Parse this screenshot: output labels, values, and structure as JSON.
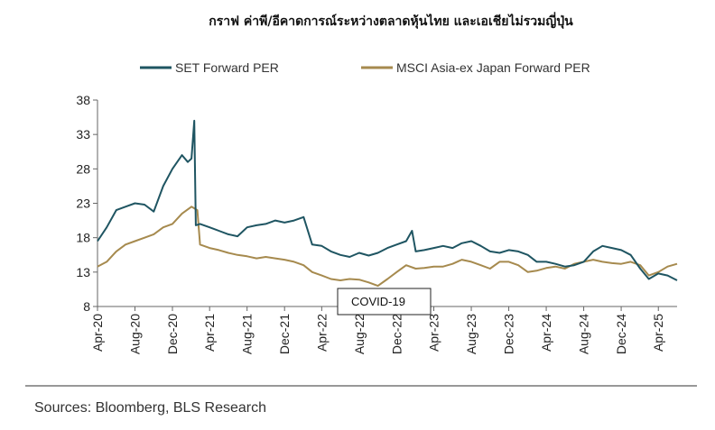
{
  "chart_data": {
    "type": "line",
    "title": "กราฟ ค่าพี/อีคาดการณ์ระหว่างตลาดหุ้นไทย และเอเชียไม่รวมญี่ปุ่น",
    "xlabel": "",
    "ylabel": "",
    "ylim": [
      8,
      38
    ],
    "yticks": [
      "8",
      "13",
      "18",
      "23",
      "28",
      "33",
      "38"
    ],
    "xlim": [
      "2020-04-01",
      "2025-06-01"
    ],
    "xticks": [
      {
        "date": "2020-04-01",
        "label": "Apr-20"
      },
      {
        "date": "2020-08-01",
        "label": "Aug-20"
      },
      {
        "date": "2020-12-01",
        "label": "Dec-20"
      },
      {
        "date": "2021-04-01",
        "label": "Apr-21"
      },
      {
        "date": "2021-08-01",
        "label": "Aug-21"
      },
      {
        "date": "2021-12-01",
        "label": "Dec-21"
      },
      {
        "date": "2022-04-01",
        "label": "Apr-22"
      },
      {
        "date": "2022-08-01",
        "label": "Aug-22"
      },
      {
        "date": "2022-12-01",
        "label": "Dec-22"
      },
      {
        "date": "2023-04-01",
        "label": "Apr-23"
      },
      {
        "date": "2023-08-01",
        "label": "Aug-23"
      },
      {
        "date": "2023-12-01",
        "label": "Dec-23"
      },
      {
        "date": "2024-04-01",
        "label": "Apr-24"
      },
      {
        "date": "2024-08-01",
        "label": "Aug-24"
      },
      {
        "date": "2024-12-01",
        "label": "Dec-24"
      },
      {
        "date": "2025-04-01",
        "label": "Apr-25"
      }
    ],
    "legend_position": "top",
    "grid": false,
    "annotation": "COVID-19",
    "series": [
      {
        "name": "SET Forward PER",
        "color": "#1f5562",
        "points": [
          [
            "2020-04-01",
            17.5
          ],
          [
            "2020-05-01",
            19.5
          ],
          [
            "2020-06-01",
            22.0
          ],
          [
            "2020-07-01",
            22.5
          ],
          [
            "2020-08-01",
            23.0
          ],
          [
            "2020-09-01",
            22.8
          ],
          [
            "2020-10-01",
            21.8
          ],
          [
            "2020-11-01",
            25.5
          ],
          [
            "2020-12-01",
            28.0
          ],
          [
            "2021-01-01",
            30.0
          ],
          [
            "2021-01-20",
            29.0
          ],
          [
            "2021-02-01",
            29.5
          ],
          [
            "2021-02-10",
            35.0
          ],
          [
            "2021-02-15",
            19.8
          ],
          [
            "2021-03-01",
            20.0
          ],
          [
            "2021-04-01",
            19.5
          ],
          [
            "2021-05-01",
            19.0
          ],
          [
            "2021-06-01",
            18.5
          ],
          [
            "2021-07-01",
            18.2
          ],
          [
            "2021-08-01",
            19.5
          ],
          [
            "2021-09-01",
            19.8
          ],
          [
            "2021-10-01",
            20.0
          ],
          [
            "2021-11-01",
            20.5
          ],
          [
            "2021-12-01",
            20.2
          ],
          [
            "2022-01-01",
            20.5
          ],
          [
            "2022-02-01",
            21.0
          ],
          [
            "2022-03-01",
            17.0
          ],
          [
            "2022-04-01",
            16.8
          ],
          [
            "2022-05-01",
            16.0
          ],
          [
            "2022-06-01",
            15.5
          ],
          [
            "2022-07-01",
            15.2
          ],
          [
            "2022-08-01",
            15.8
          ],
          [
            "2022-09-01",
            15.4
          ],
          [
            "2022-10-01",
            15.8
          ],
          [
            "2022-11-01",
            16.5
          ],
          [
            "2022-12-01",
            17.0
          ],
          [
            "2023-01-01",
            17.5
          ],
          [
            "2023-01-20",
            19.0
          ],
          [
            "2023-02-01",
            16.0
          ],
          [
            "2023-03-01",
            16.2
          ],
          [
            "2023-04-01",
            16.5
          ],
          [
            "2023-05-01",
            16.8
          ],
          [
            "2023-06-01",
            16.5
          ],
          [
            "2023-07-01",
            17.2
          ],
          [
            "2023-08-01",
            17.5
          ],
          [
            "2023-09-01",
            16.8
          ],
          [
            "2023-10-01",
            16.0
          ],
          [
            "2023-11-01",
            15.8
          ],
          [
            "2023-12-01",
            16.2
          ],
          [
            "2024-01-01",
            16.0
          ],
          [
            "2024-02-01",
            15.5
          ],
          [
            "2024-03-01",
            14.5
          ],
          [
            "2024-04-01",
            14.5
          ],
          [
            "2024-05-01",
            14.2
          ],
          [
            "2024-06-01",
            13.8
          ],
          [
            "2024-07-01",
            14.0
          ],
          [
            "2024-08-01",
            14.5
          ],
          [
            "2024-09-01",
            16.0
          ],
          [
            "2024-10-01",
            16.8
          ],
          [
            "2024-11-01",
            16.5
          ],
          [
            "2024-12-01",
            16.2
          ],
          [
            "2025-01-01",
            15.5
          ],
          [
            "2025-02-01",
            13.5
          ],
          [
            "2025-03-01",
            12.0
          ],
          [
            "2025-04-01",
            12.8
          ],
          [
            "2025-05-01",
            12.5
          ],
          [
            "2025-06-01",
            11.8
          ]
        ]
      },
      {
        "name": "MSCI Asia-ex Japan Forward PER",
        "color": "#a68a4e",
        "points": [
          [
            "2020-04-01",
            13.8
          ],
          [
            "2020-05-01",
            14.5
          ],
          [
            "2020-06-01",
            16.0
          ],
          [
            "2020-07-01",
            17.0
          ],
          [
            "2020-08-01",
            17.5
          ],
          [
            "2020-09-01",
            18.0
          ],
          [
            "2020-10-01",
            18.5
          ],
          [
            "2020-11-01",
            19.5
          ],
          [
            "2020-12-01",
            20.0
          ],
          [
            "2021-01-01",
            21.5
          ],
          [
            "2021-02-01",
            22.5
          ],
          [
            "2021-02-20",
            22.0
          ],
          [
            "2021-03-01",
            17.0
          ],
          [
            "2021-04-01",
            16.5
          ],
          [
            "2021-05-01",
            16.2
          ],
          [
            "2021-06-01",
            15.8
          ],
          [
            "2021-07-01",
            15.5
          ],
          [
            "2021-08-01",
            15.3
          ],
          [
            "2021-09-01",
            15.0
          ],
          [
            "2021-10-01",
            15.2
          ],
          [
            "2021-11-01",
            15.0
          ],
          [
            "2021-12-01",
            14.8
          ],
          [
            "2022-01-01",
            14.5
          ],
          [
            "2022-02-01",
            14.0
          ],
          [
            "2022-03-01",
            13.0
          ],
          [
            "2022-04-01",
            12.5
          ],
          [
            "2022-05-01",
            12.0
          ],
          [
            "2022-06-01",
            11.8
          ],
          [
            "2022-07-01",
            12.0
          ],
          [
            "2022-08-01",
            11.9
          ],
          [
            "2022-09-01",
            11.5
          ],
          [
            "2022-10-01",
            11.0
          ],
          [
            "2022-11-01",
            12.0
          ],
          [
            "2022-12-01",
            13.0
          ],
          [
            "2023-01-01",
            14.0
          ],
          [
            "2023-02-01",
            13.5
          ],
          [
            "2023-03-01",
            13.6
          ],
          [
            "2023-04-01",
            13.8
          ],
          [
            "2023-05-01",
            13.8
          ],
          [
            "2023-06-01",
            14.2
          ],
          [
            "2023-07-01",
            14.8
          ],
          [
            "2023-08-01",
            14.5
          ],
          [
            "2023-09-01",
            14.0
          ],
          [
            "2023-10-01",
            13.5
          ],
          [
            "2023-11-01",
            14.5
          ],
          [
            "2023-12-01",
            14.5
          ],
          [
            "2024-01-01",
            14.0
          ],
          [
            "2024-02-01",
            13.0
          ],
          [
            "2024-03-01",
            13.2
          ],
          [
            "2024-04-01",
            13.6
          ],
          [
            "2024-05-01",
            13.8
          ],
          [
            "2024-06-01",
            13.5
          ],
          [
            "2024-07-01",
            14.2
          ],
          [
            "2024-08-01",
            14.5
          ],
          [
            "2024-09-01",
            14.8
          ],
          [
            "2024-10-01",
            14.5
          ],
          [
            "2024-11-01",
            14.3
          ],
          [
            "2024-12-01",
            14.2
          ],
          [
            "2025-01-01",
            14.5
          ],
          [
            "2025-02-01",
            14.0
          ],
          [
            "2025-03-01",
            12.5
          ],
          [
            "2025-04-01",
            13.0
          ],
          [
            "2025-05-01",
            13.8
          ],
          [
            "2025-06-01",
            14.2
          ]
        ]
      }
    ]
  },
  "footer": {
    "source": "Sources: Bloomberg, BLS Research"
  }
}
